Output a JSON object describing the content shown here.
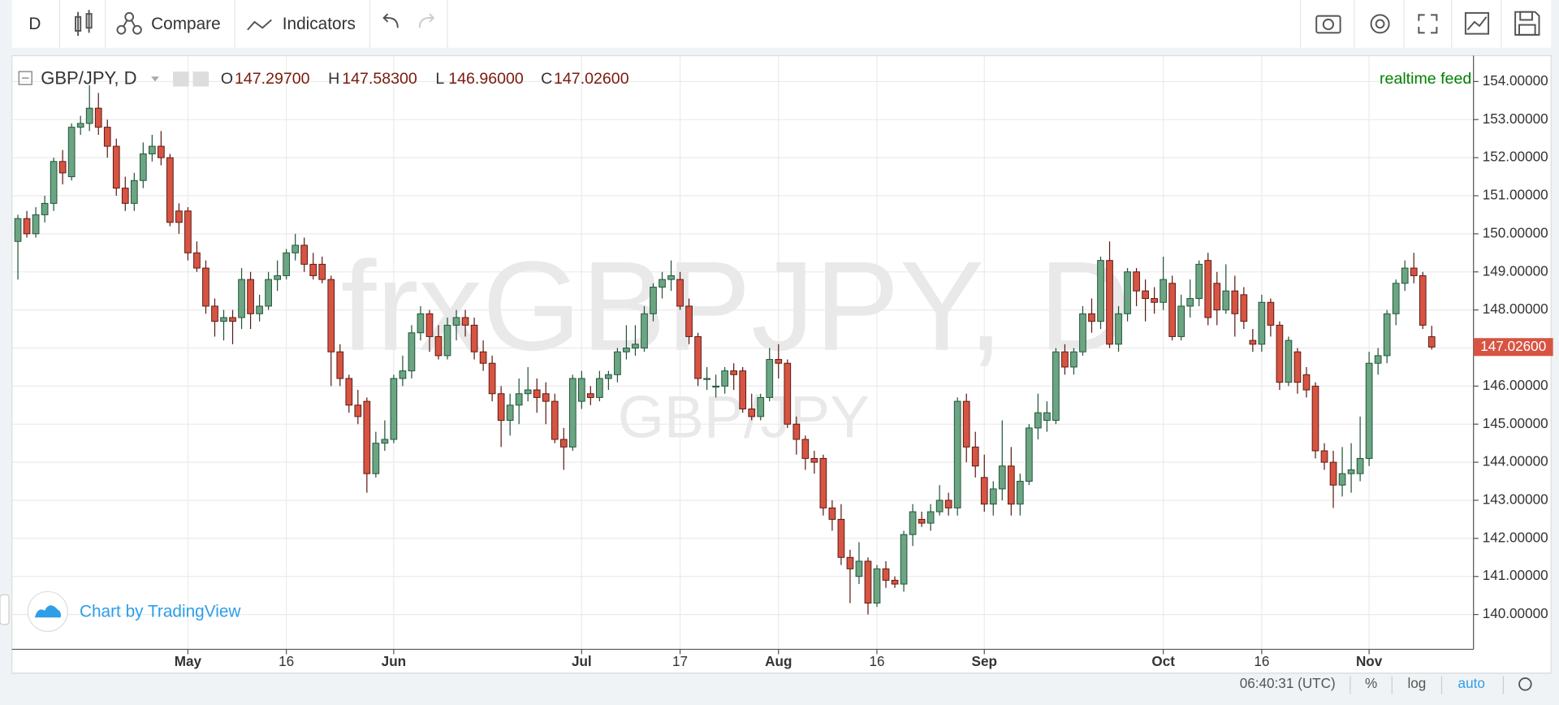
{
  "toolbar": {
    "interval": "D",
    "compare": "Compare",
    "indicators": "Indicators"
  },
  "chart_data": {
    "type": "candlestick",
    "symbol": "GBP/JPY, D",
    "legend_values": [
      {
        "key": "O",
        "value": "147.29700"
      },
      {
        "key": "H",
        "value": "147.58300"
      },
      {
        "key": "L",
        "value": "146.96000"
      },
      {
        "key": "C",
        "value": "147.02600"
      }
    ],
    "feed": "realtime feed",
    "watermark": "frxGBPJPY, D",
    "watermark_sub": "GBP/JPY",
    "branding": "Chart by TradingView",
    "last_price_label": "147.02600",
    "up_color": "#6ba583",
    "down_color": "#d75442",
    "grid": true,
    "categories": [
      null,
      null,
      null,
      null,
      null,
      null,
      null,
      null,
      null,
      null,
      null,
      null,
      null,
      null,
      null,
      null,
      null,
      null,
      null,
      "May",
      null,
      null,
      null,
      null,
      null,
      null,
      null,
      null,
      null,
      null,
      "16",
      null,
      null,
      null,
      null,
      null,
      null,
      null,
      null,
      null,
      null,
      null,
      "Jun",
      null,
      null,
      null,
      null,
      null,
      null,
      null,
      null,
      null,
      null,
      null,
      null,
      null,
      null,
      null,
      null,
      null,
      null,
      null,
      null,
      "Jul",
      null,
      null,
      null,
      null,
      null,
      null,
      null,
      null,
      null,
      null,
      "17",
      null,
      null,
      null,
      null,
      null,
      null,
      null,
      null,
      null,
      null,
      "Aug",
      null,
      null,
      null,
      null,
      null,
      null,
      null,
      null,
      null,
      null,
      "16",
      null,
      null,
      null,
      null,
      null,
      null,
      null,
      null,
      null,
      null,
      null,
      "Sep",
      null,
      null,
      null,
      null,
      null,
      null,
      null,
      null,
      null,
      null,
      null,
      null,
      null,
      null,
      null,
      null,
      null,
      null,
      null,
      "Oct",
      null,
      null,
      null,
      null,
      null,
      null,
      null,
      null,
      null,
      null,
      "16",
      null,
      null,
      null,
      null,
      null,
      null,
      null,
      null,
      null,
      null,
      null,
      "Nov",
      null,
      null,
      null,
      null,
      null,
      null,
      null
    ],
    "open": [
      149.8,
      150.4,
      150.0,
      150.5,
      150.8,
      151.9,
      151.5,
      152.8,
      152.9,
      153.3,
      152.8,
      152.3,
      151.2,
      150.8,
      151.4,
      152.1,
      152.3,
      152.0,
      150.6,
      150.6,
      149.5,
      149.1,
      148.1,
      147.7,
      147.8,
      147.8,
      148.8,
      147.9,
      148.1,
      148.8,
      148.9,
      149.5,
      149.7,
      149.2,
      149.2,
      148.8,
      146.9,
      146.2,
      145.5,
      145.6,
      143.7,
      144.5,
      144.6,
      146.2,
      146.4,
      147.4,
      147.9,
      147.3,
      146.8,
      147.6,
      147.8,
      147.6,
      146.9,
      146.6,
      145.8,
      145.1,
      145.5,
      145.8,
      145.9,
      145.8,
      145.6,
      144.6,
      144.4,
      145.6,
      145.8,
      145.7,
      146.2,
      146.3,
      146.9,
      147.0,
      147.0,
      147.9,
      148.6,
      148.8,
      148.8,
      148.1,
      147.3,
      146.2,
      146.0,
      146.0,
      146.4,
      146.4,
      145.4,
      145.2,
      145.7,
      146.7,
      146.6,
      145.0,
      144.6,
      144.1,
      144.1,
      142.8,
      142.5,
      141.5,
      141.0,
      141.4,
      140.3,
      141.2,
      140.9,
      140.8,
      142.1,
      142.5,
      142.4,
      142.7,
      143.0,
      142.8,
      145.6,
      144.4,
      143.6,
      142.9,
      143.3,
      143.9,
      142.9,
      143.5,
      144.9,
      145.1,
      145.1,
      146.9,
      146.5,
      146.9,
      147.9,
      147.7,
      149.3,
      147.1,
      147.9,
      149.0,
      148.5,
      148.3,
      148.2,
      148.7,
      147.3,
      148.1,
      148.3,
      149.3,
      148.7,
      148.0,
      148.5,
      148.4,
      147.2,
      147.1,
      148.2,
      147.6,
      146.1,
      146.9,
      146.3,
      146.0,
      144.3,
      144.0,
      143.4,
      143.7,
      143.7,
      144.1,
      146.6,
      146.8,
      147.9,
      148.7,
      149.1,
      148.9,
      147.297
    ],
    "high": [
      150.5,
      150.6,
      150.7,
      151.0,
      152.0,
      152.2,
      152.9,
      153.1,
      153.9,
      153.7,
      153.0,
      152.5,
      151.5,
      151.6,
      152.4,
      152.6,
      152.7,
      152.1,
      150.8,
      150.7,
      149.8,
      149.3,
      148.3,
      148.0,
      148.0,
      149.1,
      149.0,
      148.4,
      149.0,
      149.3,
      149.6,
      150.0,
      149.9,
      149.5,
      149.4,
      148.9,
      147.1,
      146.3,
      145.9,
      145.7,
      144.8,
      145.1,
      146.3,
      146.8,
      147.6,
      148.1,
      148.0,
      147.6,
      147.8,
      148.0,
      148.0,
      147.8,
      147.2,
      146.8,
      146.0,
      145.8,
      146.2,
      146.5,
      146.2,
      146.1,
      145.8,
      144.9,
      146.3,
      146.4,
      146.0,
      146.4,
      146.4,
      147.0,
      147.6,
      147.6,
      148.1,
      148.7,
      149.0,
      149.3,
      149.0,
      148.3,
      147.4,
      146.5,
      146.3,
      146.5,
      146.6,
      146.5,
      145.8,
      145.8,
      147.0,
      147.1,
      146.7,
      145.2,
      144.7,
      144.3,
      144.2,
      143.0,
      142.9,
      141.7,
      141.9,
      141.5,
      141.3,
      141.4,
      141.0,
      142.2,
      142.9,
      142.7,
      142.9,
      143.4,
      143.2,
      145.7,
      145.8,
      144.8,
      144.2,
      143.5,
      145.1,
      144.4,
      143.7,
      145.0,
      145.8,
      145.6,
      147.0,
      147.1,
      147.0,
      148.1,
      148.3,
      149.4,
      149.8,
      148.1,
      149.1,
      149.1,
      148.8,
      148.6,
      149.4,
      148.9,
      148.4,
      148.8,
      149.3,
      149.5,
      149.0,
      149.2,
      148.9,
      148.6,
      147.5,
      148.4,
      148.3,
      147.7,
      147.3,
      147.0,
      146.5,
      146.1,
      144.5,
      144.3,
      144.4,
      144.5,
      145.2,
      146.9,
      147.0,
      148.0,
      148.8,
      149.3,
      149.5,
      149.0,
      147.583
    ],
    "low": [
      148.8,
      149.9,
      149.9,
      150.3,
      150.6,
      151.3,
      151.4,
      152.6,
      152.7,
      152.6,
      152.0,
      151.0,
      150.6,
      150.6,
      151.2,
      151.9,
      151.8,
      150.2,
      150.0,
      149.3,
      149.0,
      147.9,
      147.3,
      147.2,
      147.1,
      147.5,
      147.5,
      147.7,
      148.0,
      148.5,
      148.8,
      149.3,
      149.0,
      148.8,
      148.7,
      146.0,
      146.0,
      145.3,
      145.0,
      143.2,
      143.6,
      144.3,
      144.5,
      146.0,
      146.2,
      147.2,
      146.9,
      146.7,
      146.7,
      147.2,
      147.3,
      146.7,
      146.4,
      145.6,
      144.4,
      144.7,
      145.0,
      145.6,
      145.3,
      145.0,
      144.5,
      143.8,
      144.3,
      145.4,
      145.5,
      145.6,
      145.9,
      146.1,
      146.7,
      146.8,
      146.9,
      147.7,
      148.3,
      148.5,
      148.0,
      147.1,
      146.0,
      145.9,
      145.7,
      145.8,
      145.9,
      145.3,
      145.1,
      145.1,
      145.6,
      146.2,
      144.9,
      144.2,
      143.8,
      143.7,
      142.6,
      142.2,
      141.3,
      140.3,
      140.8,
      140.0,
      140.2,
      140.7,
      140.7,
      140.6,
      141.8,
      142.3,
      142.2,
      142.6,
      142.6,
      142.6,
      144.0,
      143.6,
      142.7,
      142.6,
      143.0,
      142.6,
      142.6,
      143.4,
      144.6,
      144.8,
      145.0,
      146.3,
      146.3,
      146.8,
      147.4,
      147.5,
      147.0,
      146.9,
      147.7,
      148.1,
      147.7,
      147.9,
      148.0,
      147.2,
      147.2,
      147.8,
      148.1,
      147.6,
      147.6,
      147.9,
      147.3,
      147.5,
      146.9,
      146.9,
      147.3,
      145.9,
      146.0,
      145.8,
      145.7,
      144.1,
      143.8,
      142.8,
      143.1,
      143.2,
      143.5,
      143.9,
      146.3,
      146.6,
      147.6,
      148.5,
      148.7,
      147.5,
      146.96
    ],
    "close": [
      150.4,
      150.0,
      150.5,
      150.8,
      151.9,
      151.6,
      152.8,
      152.9,
      153.3,
      152.8,
      152.3,
      151.2,
      150.8,
      151.4,
      152.1,
      152.3,
      152.0,
      150.3,
      150.3,
      149.5,
      149.1,
      148.1,
      147.7,
      147.8,
      147.7,
      148.8,
      147.9,
      148.1,
      148.8,
      148.9,
      149.5,
      149.7,
      149.2,
      148.9,
      148.8,
      146.9,
      146.2,
      145.5,
      145.2,
      143.7,
      144.5,
      144.6,
      146.2,
      146.4,
      147.4,
      147.9,
      147.3,
      146.8,
      147.6,
      147.8,
      147.6,
      146.9,
      146.6,
      145.8,
      145.1,
      145.5,
      145.8,
      145.9,
      145.7,
      145.6,
      144.6,
      144.4,
      146.2,
      146.2,
      145.7,
      146.2,
      146.3,
      146.9,
      147.0,
      147.1,
      147.9,
      148.6,
      148.8,
      148.9,
      148.1,
      147.3,
      146.2,
      146.2,
      146.0,
      146.4,
      146.3,
      145.4,
      145.2,
      145.7,
      146.7,
      146.6,
      145.0,
      144.6,
      144.1,
      144.0,
      142.8,
      142.5,
      141.5,
      141.2,
      141.4,
      140.3,
      141.2,
      140.9,
      140.8,
      142.1,
      142.7,
      142.4,
      142.7,
      143.0,
      142.8,
      145.6,
      144.4,
      143.9,
      142.9,
      143.3,
      143.9,
      142.9,
      143.5,
      144.9,
      145.3,
      145.3,
      146.9,
      146.5,
      146.9,
      147.9,
      147.7,
      149.3,
      147.1,
      147.9,
      149.0,
      148.5,
      148.3,
      148.2,
      148.8,
      147.3,
      148.1,
      148.3,
      149.2,
      147.8,
      148.0,
      148.5,
      147.9,
      147.7,
      147.1,
      148.2,
      147.6,
      146.1,
      147.2,
      146.1,
      145.9,
      144.3,
      144.0,
      143.4,
      143.7,
      143.8,
      144.1,
      146.6,
      146.8,
      147.9,
      148.7,
      149.1,
      148.9,
      147.6,
      147.026
    ],
    "ylim": [
      140,
      154
    ],
    "yticks": [
      {
        "value": 140,
        "label": "140.00000"
      },
      {
        "value": 141,
        "label": "141.00000"
      },
      {
        "value": 142,
        "label": "142.00000"
      },
      {
        "value": 143,
        "label": "143.00000"
      },
      {
        "value": 144,
        "label": "144.00000"
      },
      {
        "value": 145,
        "label": "145.00000"
      },
      {
        "value": 146,
        "label": "146.00000"
      },
      {
        "value": 147,
        "label": "147.00000"
      },
      {
        "value": 148,
        "label": "148.00000"
      },
      {
        "value": 149,
        "label": "149.00000"
      },
      {
        "value": 150,
        "label": "150.00000"
      },
      {
        "value": 151,
        "label": "151.00000"
      },
      {
        "value": 152,
        "label": "152.00000"
      },
      {
        "value": 153,
        "label": "153.00000"
      },
      {
        "value": 154,
        "label": "154.00000"
      }
    ]
  },
  "status_bar": {
    "time": "06:40:31 (UTC)",
    "percent": "%",
    "log": "log",
    "auto": "auto"
  }
}
